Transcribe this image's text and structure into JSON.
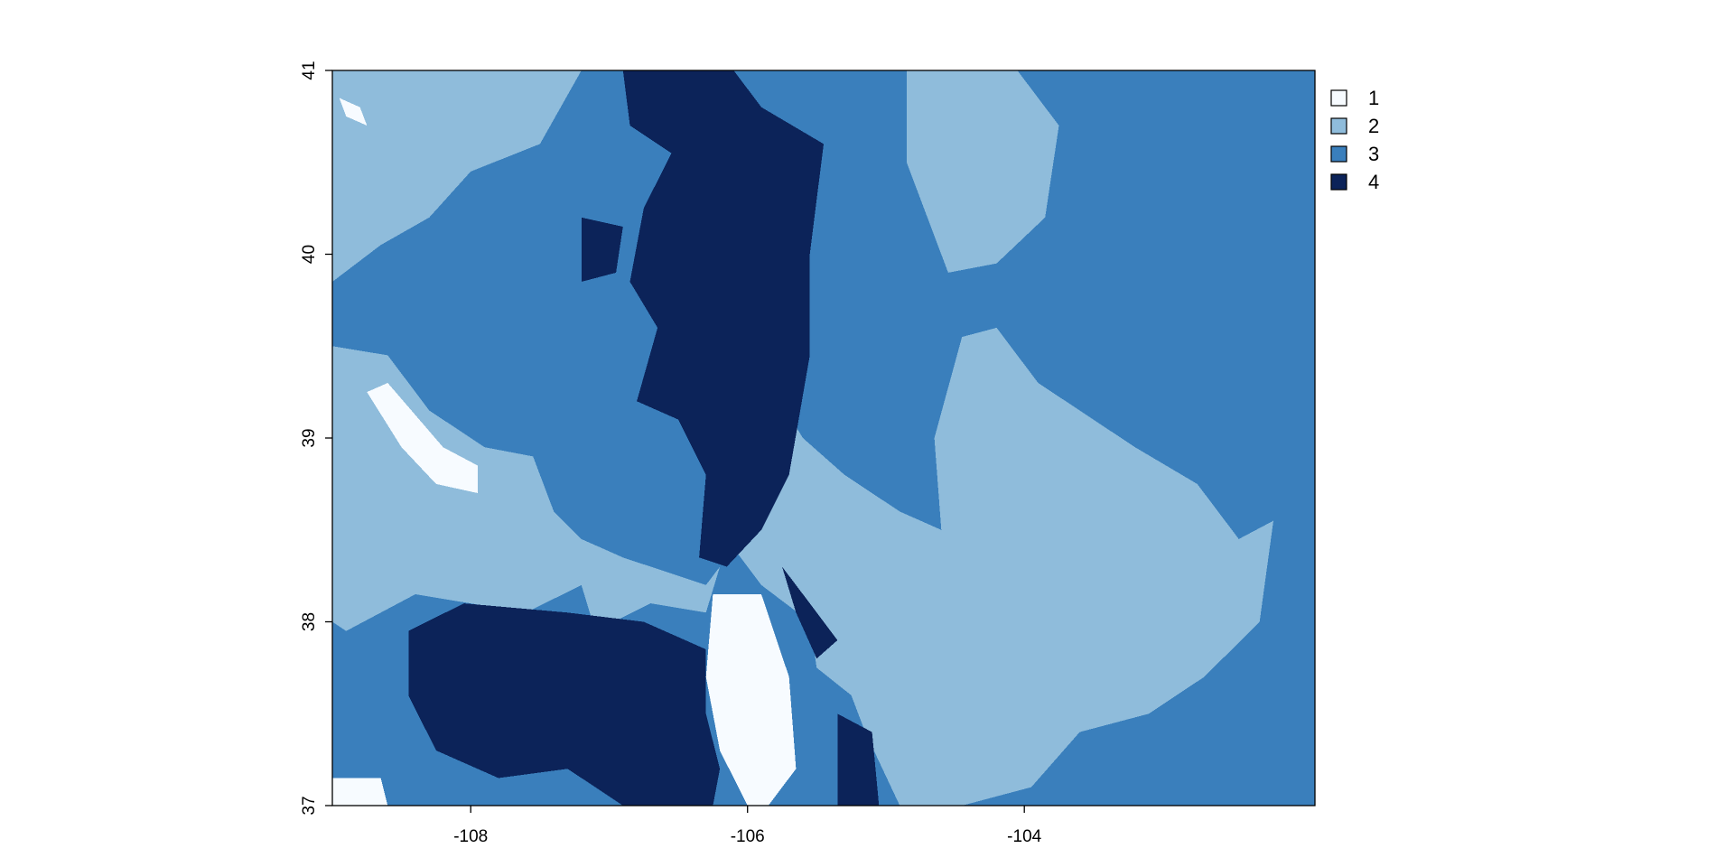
{
  "chart_data": {
    "type": "heatmap",
    "title": "",
    "xlabel": "",
    "ylabel": "",
    "xlim": [
      -109.0,
      -101.9
    ],
    "ylim": [
      37.0,
      41.0
    ],
    "x_ticks": [
      -108,
      -106,
      -104
    ],
    "y_ticks": [
      37,
      38,
      39,
      40,
      41
    ],
    "x_tick_labels": [
      "-108",
      "-106",
      "-104"
    ],
    "y_tick_labels": [
      "37",
      "38",
      "39",
      "40",
      "41"
    ],
    "legend": {
      "position": "right",
      "entries": [
        {
          "label": "1",
          "class": 1,
          "color": "#f7fbff"
        },
        {
          "label": "2",
          "class": 2,
          "color": "#8fbcdb"
        },
        {
          "label": "3",
          "class": 3,
          "color": "#3a7fbc"
        },
        {
          "label": "4",
          "class": 4,
          "color": "#0c2359"
        }
      ]
    },
    "background_class": 3,
    "regions": [
      {
        "class": 2,
        "points": [
          [
            -109.0,
            41.0
          ],
          [
            -107.2,
            41.0
          ],
          [
            -107.5,
            40.6
          ],
          [
            -108.0,
            40.45
          ],
          [
            -108.3,
            40.2
          ],
          [
            -108.65,
            40.05
          ],
          [
            -109.0,
            39.85
          ]
        ]
      },
      {
        "class": 2,
        "points": [
          [
            -104.85,
            41.0
          ],
          [
            -104.05,
            41.0
          ],
          [
            -103.75,
            40.7
          ],
          [
            -103.85,
            40.2
          ],
          [
            -104.2,
            39.95
          ],
          [
            -104.55,
            39.9
          ],
          [
            -104.7,
            40.2
          ],
          [
            -104.85,
            40.5
          ]
        ]
      },
      {
        "class": 2,
        "points": [
          [
            -109.0,
            39.5
          ],
          [
            -108.6,
            39.45
          ],
          [
            -108.3,
            39.15
          ],
          [
            -107.9,
            38.95
          ],
          [
            -107.55,
            38.9
          ],
          [
            -107.4,
            38.6
          ],
          [
            -107.2,
            38.45
          ],
          [
            -106.9,
            38.35
          ],
          [
            -106.3,
            38.2
          ],
          [
            -106.2,
            38.3
          ],
          [
            -106.3,
            38.05
          ],
          [
            -106.7,
            38.1
          ],
          [
            -107.1,
            37.95
          ],
          [
            -107.2,
            38.2
          ],
          [
            -107.6,
            38.05
          ],
          [
            -108.4,
            38.15
          ],
          [
            -108.9,
            37.95
          ],
          [
            -109.0,
            38.0
          ]
        ]
      },
      {
        "class": 2,
        "points": [
          [
            -106.2,
            39.0
          ],
          [
            -105.8,
            39.25
          ],
          [
            -105.6,
            39.0
          ],
          [
            -105.3,
            38.8
          ],
          [
            -104.9,
            38.6
          ],
          [
            -104.6,
            38.5
          ],
          [
            -104.65,
            39.0
          ],
          [
            -104.45,
            39.55
          ],
          [
            -104.2,
            39.6
          ],
          [
            -103.9,
            39.3
          ],
          [
            -103.2,
            38.95
          ],
          [
            -102.75,
            38.75
          ],
          [
            -102.45,
            38.45
          ],
          [
            -102.2,
            38.55
          ],
          [
            -102.3,
            38.0
          ],
          [
            -102.7,
            37.7
          ],
          [
            -103.1,
            37.5
          ],
          [
            -103.6,
            37.4
          ],
          [
            -103.95,
            37.1
          ],
          [
            -104.45,
            37.0
          ],
          [
            -104.9,
            37.0
          ],
          [
            -105.15,
            37.4
          ],
          [
            -105.25,
            37.6
          ],
          [
            -105.5,
            37.75
          ],
          [
            -105.55,
            38.0
          ],
          [
            -105.9,
            38.2
          ],
          [
            -106.2,
            38.5
          ]
        ]
      },
      {
        "class": 4,
        "points": [
          [
            -106.9,
            41.0
          ],
          [
            -106.1,
            41.0
          ],
          [
            -105.9,
            40.8
          ],
          [
            -105.45,
            40.6
          ],
          [
            -105.55,
            40.0
          ],
          [
            -105.55,
            39.45
          ],
          [
            -105.7,
            38.8
          ],
          [
            -105.9,
            38.5
          ],
          [
            -106.15,
            38.3
          ],
          [
            -106.35,
            38.35
          ],
          [
            -106.3,
            38.8
          ],
          [
            -106.5,
            39.1
          ],
          [
            -106.8,
            39.2
          ],
          [
            -106.65,
            39.6
          ],
          [
            -106.85,
            39.85
          ],
          [
            -106.75,
            40.25
          ],
          [
            -106.55,
            40.55
          ],
          [
            -106.85,
            40.7
          ]
        ]
      },
      {
        "class": 4,
        "points": [
          [
            -107.2,
            40.2
          ],
          [
            -106.9,
            40.15
          ],
          [
            -106.95,
            39.9
          ],
          [
            -107.2,
            39.85
          ]
        ]
      },
      {
        "class": 4,
        "points": [
          [
            -108.45,
            37.95
          ],
          [
            -108.05,
            38.1
          ],
          [
            -107.3,
            38.05
          ],
          [
            -106.75,
            38.0
          ],
          [
            -106.3,
            37.85
          ],
          [
            -106.3,
            37.5
          ],
          [
            -106.2,
            37.2
          ],
          [
            -106.25,
            37.0
          ],
          [
            -106.9,
            37.0
          ],
          [
            -107.3,
            37.2
          ],
          [
            -107.8,
            37.15
          ],
          [
            -108.25,
            37.3
          ],
          [
            -108.45,
            37.6
          ]
        ]
      },
      {
        "class": 4,
        "points": [
          [
            -105.75,
            38.3
          ],
          [
            -105.55,
            38.1
          ],
          [
            -105.35,
            37.9
          ],
          [
            -105.5,
            37.8
          ],
          [
            -105.65,
            38.05
          ]
        ]
      },
      {
        "class": 4,
        "points": [
          [
            -105.35,
            37.5
          ],
          [
            -105.1,
            37.4
          ],
          [
            -105.05,
            37.0
          ],
          [
            -105.35,
            37.0
          ]
        ]
      },
      {
        "class": 1,
        "points": [
          [
            -106.25,
            38.15
          ],
          [
            -105.9,
            38.15
          ],
          [
            -105.7,
            37.7
          ],
          [
            -105.65,
            37.2
          ],
          [
            -105.85,
            37.0
          ],
          [
            -106.0,
            37.0
          ],
          [
            -106.2,
            37.3
          ],
          [
            -106.3,
            37.7
          ]
        ]
      },
      {
        "class": 1,
        "points": [
          [
            -108.75,
            39.25
          ],
          [
            -108.6,
            39.3
          ],
          [
            -108.2,
            38.95
          ],
          [
            -107.95,
            38.85
          ],
          [
            -107.95,
            38.7
          ],
          [
            -108.25,
            38.75
          ],
          [
            -108.5,
            38.95
          ]
        ]
      },
      {
        "class": 1,
        "points": [
          [
            -109.0,
            37.15
          ],
          [
            -108.65,
            37.15
          ],
          [
            -108.6,
            37.0
          ],
          [
            -109.0,
            37.0
          ]
        ]
      },
      {
        "class": 1,
        "points": [
          [
            -108.95,
            40.85
          ],
          [
            -108.8,
            40.8
          ],
          [
            -108.75,
            40.7
          ],
          [
            -108.9,
            40.75
          ]
        ]
      }
    ]
  }
}
